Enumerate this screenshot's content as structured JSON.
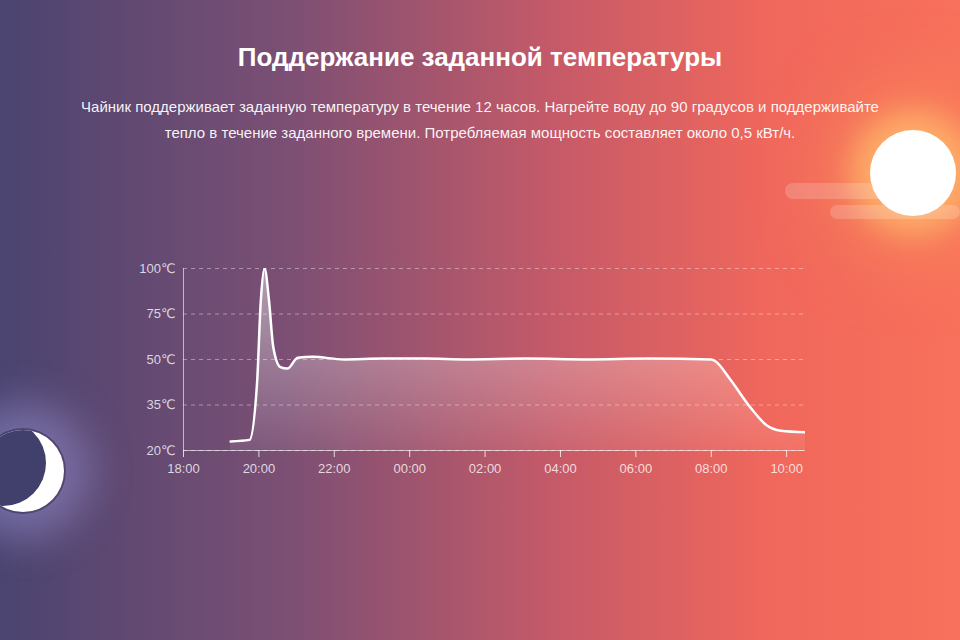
{
  "chart_data": {
    "type": "line",
    "title": "Поддержание заданной температуры",
    "subtitle": "Чайник поддерживает заданную температуру в течение 12 часов. Нагрейте воду до 90 градусов и поддерживайте тепло в течение заданного времени. Потребляемая мощность составляет около 0,5 кВт/ч.",
    "x": [
      19.25,
      19.75,
      19.95,
      20.05,
      20.15,
      20.27,
      20.38,
      20.57,
      20.76,
      21.03,
      21.43,
      22.25,
      23.3,
      24.4,
      25.5,
      27.1,
      28.7,
      30.35,
      32,
      32.1,
      32.5,
      33.05,
      33.45,
      33.85,
      34.5
    ],
    "values": [
      23,
      23.5,
      42,
      82,
      100,
      82,
      57,
      47.5,
      47,
      51,
      51.5,
      50,
      50.5,
      50.5,
      50,
      50.5,
      50,
      50.5,
      50,
      49.5,
      43.5,
      34,
      28.5,
      26.5,
      26
    ],
    "color": "#ffffff",
    "xlim": [
      18,
      34.5
    ],
    "ylim": [
      20,
      100
    ],
    "xticks": [
      {
        "value": 18,
        "label": "18:00"
      },
      {
        "value": 20,
        "label": "20:00"
      },
      {
        "value": 22,
        "label": "22:00"
      },
      {
        "value": 24,
        "label": "00:00"
      },
      {
        "value": 26,
        "label": "02:00"
      },
      {
        "value": 28,
        "label": "04:00"
      },
      {
        "value": 30,
        "label": "06:00"
      },
      {
        "value": 32,
        "label": "08:00"
      },
      {
        "value": 34,
        "label": "10:00"
      }
    ],
    "yticks": [
      {
        "value": 20,
        "label": "20℃"
      },
      {
        "value": 35,
        "label": "35℃"
      },
      {
        "value": 50,
        "label": "50℃"
      },
      {
        "value": 75,
        "label": "75℃"
      },
      {
        "value": 100,
        "label": "100℃"
      }
    ],
    "grid": true
  }
}
